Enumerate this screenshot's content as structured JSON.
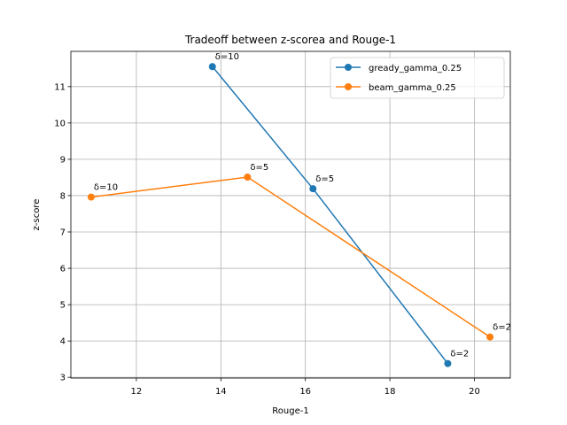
{
  "chart_data": {
    "type": "line",
    "title": "Tradeoff between z-scorea and Rouge-1",
    "xlabel": "Rouge-1",
    "ylabel": "z-score",
    "xlim": [
      10.45,
      20.85
    ],
    "ylim": [
      2.98,
      11.97
    ],
    "xticks": [
      12,
      14,
      16,
      18,
      20
    ],
    "yticks": [
      3,
      4,
      5,
      6,
      7,
      8,
      9,
      10,
      11
    ],
    "grid": true,
    "legend_position": "top-right",
    "series": [
      {
        "name": "gready_gamma_0.25",
        "color": "#1f77b4",
        "points": [
          {
            "x": 13.8,
            "y": 11.55,
            "label": "δ=10"
          },
          {
            "x": 16.18,
            "y": 8.19,
            "label": "δ=5"
          },
          {
            "x": 19.37,
            "y": 3.38,
            "label": "δ=2"
          }
        ]
      },
      {
        "name": "beam_gamma_0.25",
        "color": "#ff7f0e",
        "points": [
          {
            "x": 10.93,
            "y": 7.96,
            "label": "δ=10"
          },
          {
            "x": 14.63,
            "y": 8.51,
            "label": "δ=5"
          },
          {
            "x": 20.37,
            "y": 4.11,
            "label": "δ=2"
          }
        ]
      }
    ]
  }
}
